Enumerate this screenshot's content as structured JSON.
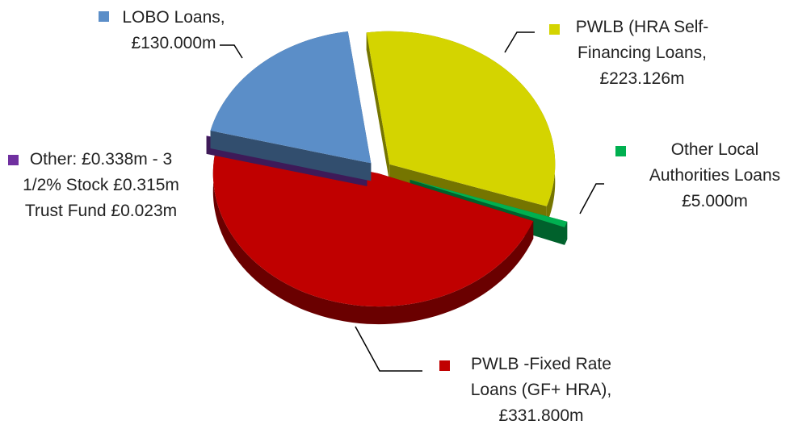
{
  "chart_data": {
    "type": "pie",
    "pie_3d": true,
    "categories": [
      "PWLB (HRA Self-Financing Loans,",
      "Other Local Authorities Loans",
      "PWLB -Fixed Rate Loans (GF+ HRA),",
      "Other:",
      "LOBO Loans,"
    ],
    "values": [
      223.126,
      5.0,
      331.8,
      0.338,
      130.0
    ],
    "value_labels": [
      "£223.126m",
      "£5.000m",
      "£331.800m",
      "£0.338m",
      "£130.000m"
    ],
    "colors": [
      "#d4d400",
      "#00b050",
      "#c00000",
      "#7030a0",
      "#5b8ec8"
    ],
    "annotation": "- 3 1/2% Stock £0.315m Trust Fund £0.023m"
  }
}
